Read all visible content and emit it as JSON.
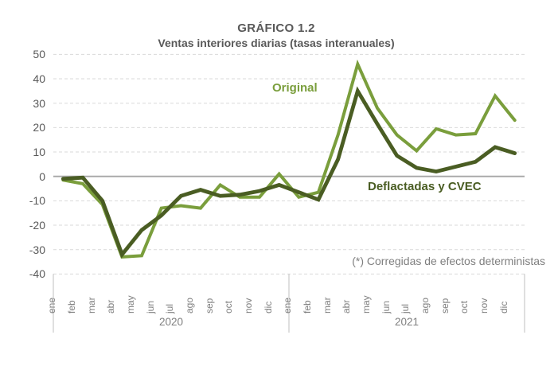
{
  "title": "GRÁFICO 1.2",
  "subtitle": "Ventas interiores diarias (tasas interanuales)",
  "footnote": "(*) Corregidas de efectos deterministas",
  "chart_data": {
    "type": "line",
    "title": "GRÁFICO 1.2",
    "subtitle": "Ventas interiores diarias (tasas interanuales)",
    "annotation": "(*) Corregidas de efectos deterministas",
    "categories": [
      "ene",
      "feb",
      "mar",
      "abr",
      "may",
      "jun",
      "jul",
      "ago",
      "sep",
      "oct",
      "nov",
      "dic",
      "ene",
      "feb",
      "mar",
      "abr",
      "may",
      "jun",
      "jul",
      "ago",
      "sep",
      "oct",
      "nov",
      "dic"
    ],
    "year_groups": [
      {
        "label": "2020",
        "span": 12
      },
      {
        "label": "2021",
        "span": 12
      }
    ],
    "series": [
      {
        "name": "Original",
        "color": "#7a9e3c",
        "values": [
          -1.5,
          -3,
          -11.5,
          -33,
          -32.5,
          -13,
          -12,
          -13,
          -3.5,
          -8.5,
          -8.5,
          1,
          -8.5,
          -6.5,
          17,
          46,
          28,
          17,
          10.5,
          19.5,
          17,
          17.5,
          33,
          23
        ]
      },
      {
        "name": "Deflactadas y CVEC",
        "color": "#4a5d23",
        "values": [
          -1,
          -0.5,
          -10,
          -32,
          -22,
          -16,
          -8,
          -5.5,
          -8,
          -7.5,
          -6,
          -3.5,
          -6.5,
          -9.5,
          7,
          35,
          21.5,
          8.5,
          3.5,
          2,
          4,
          6,
          12,
          9.5
        ]
      }
    ],
    "ylim": [
      -40,
      50
    ],
    "yticks": [
      50,
      40,
      30,
      20,
      10,
      0,
      -10,
      -20,
      -30,
      -40
    ],
    "grid": "horizontal dashed, solid zero line",
    "legend": "inline labels next to lines",
    "grid_color": "#d9d9d9",
    "zero_line_color": "#a6a6a6",
    "separator_color": "#bfbfbf"
  }
}
